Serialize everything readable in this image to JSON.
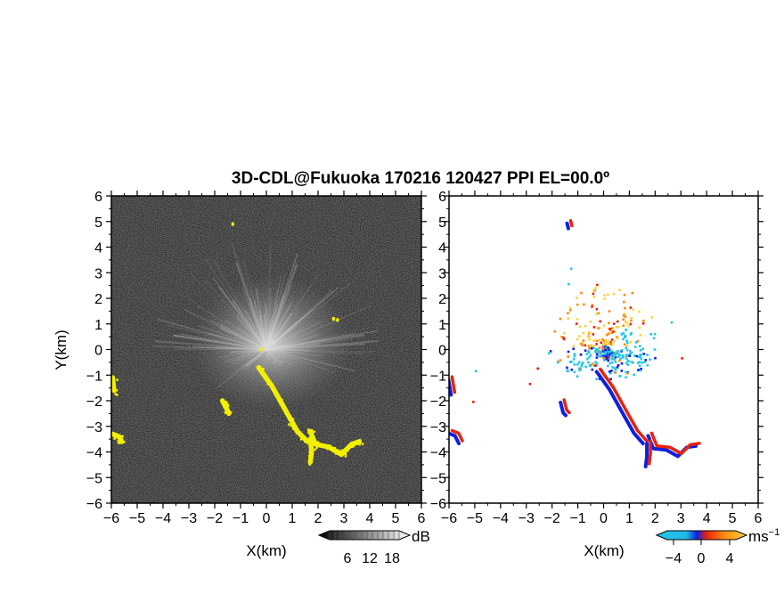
{
  "title": "3D-CDL@Fukuoka 170216 120427 PPI EL=00.0º",
  "colors": {
    "background": "#ffffff",
    "snr_panel_bg": "#2a2a2a",
    "snr_echo": "#f2f000",
    "vel_positive": "#e8220c",
    "vel_negative": "#1020e0",
    "vel_zero_cyan": "#20c8e8",
    "vel_orange": "#ff8a10",
    "vel_yellow": "#ffd23c"
  },
  "chart_data": [
    {
      "type": "heatmap",
      "name": "snr-ppi",
      "xlabel": "X(km)",
      "ylabel": "Y(km)",
      "xlim": [
        -6,
        6
      ],
      "ylim": [
        -6,
        6
      ],
      "xticks": [
        "−6",
        "−5",
        "−4",
        "−3",
        "−2",
        "−1",
        "0",
        "1",
        "2",
        "3",
        "4",
        "5",
        "6"
      ],
      "yticks": [
        "6",
        "5",
        "4",
        "3",
        "2",
        "1",
        "0",
        "−1",
        "−2",
        "−3",
        "−4",
        "−5",
        "−6"
      ],
      "colorbar": {
        "unit": "dB",
        "ticks": [
          "6",
          "12",
          "18"
        ],
        "range": [
          0,
          24
        ],
        "colors": [
          "#000000",
          "#ffffff"
        ]
      },
      "echo_features": [
        {
          "kind": "line",
          "points": [
            [
              -0.3,
              -0.7
            ],
            [
              0.2,
              -1.4
            ],
            [
              0.7,
              -2.3
            ],
            [
              1.2,
              -3.2
            ],
            [
              1.6,
              -3.6
            ]
          ]
        },
        {
          "kind": "line",
          "points": [
            [
              1.7,
              -3.2
            ],
            [
              1.9,
              -3.7
            ],
            [
              2.4,
              -3.8
            ],
            [
              2.9,
              -4.1
            ],
            [
              3.3,
              -3.7
            ],
            [
              3.6,
              -3.6
            ]
          ]
        },
        {
          "kind": "line",
          "points": [
            [
              1.7,
              -3.5
            ],
            [
              1.75,
              -4.0
            ],
            [
              1.7,
              -4.4
            ]
          ]
        },
        {
          "kind": "line",
          "points": [
            [
              -5.95,
              -1.1
            ],
            [
              -5.9,
              -1.6
            ]
          ]
        },
        {
          "kind": "line",
          "points": [
            [
              -5.95,
              -3.3
            ],
            [
              -5.7,
              -3.4
            ],
            [
              -5.6,
              -3.6
            ]
          ]
        },
        {
          "kind": "line",
          "points": [
            [
              -1.7,
              -2.0
            ],
            [
              -1.55,
              -2.3
            ],
            [
              -1.45,
              -2.5
            ]
          ]
        },
        {
          "kind": "blob",
          "points": [
            [
              -1.3,
              4.9
            ],
            [
              2.6,
              1.2
            ],
            [
              2.75,
              1.15
            ],
            [
              -0.2,
              0.0
            ]
          ]
        }
      ]
    },
    {
      "type": "heatmap",
      "name": "doppler-velocity-ppi",
      "xlabel": "X(km)",
      "xlim": [
        -6,
        6
      ],
      "ylim": [
        -6,
        6
      ],
      "xticks": [
        "−6",
        "−5",
        "−4",
        "−3",
        "−2",
        "−1",
        "0",
        "1",
        "2",
        "3",
        "4",
        "5",
        "6"
      ],
      "yticks": [
        "6",
        "5",
        "4",
        "3",
        "2",
        "1",
        "0",
        "−1",
        "−2",
        "−3",
        "−4",
        "−5",
        "−6"
      ],
      "colorbar": {
        "unit": "ms",
        "unit_exponent": "−1",
        "ticks": [
          "−4",
          "0",
          "4"
        ],
        "range": [
          -6,
          6
        ],
        "colors": [
          "#20c8e8",
          "#1020e0",
          "#e8220c",
          "#ff8a10",
          "#ffd23c"
        ]
      },
      "echo_features": [
        {
          "kind": "ridge",
          "points": [
            [
              -0.2,
              -0.8
            ],
            [
              0.3,
              -1.5
            ],
            [
              0.8,
              -2.4
            ],
            [
              1.25,
              -3.2
            ],
            [
              1.6,
              -3.6
            ]
          ]
        },
        {
          "kind": "ridge",
          "points": [
            [
              1.8,
              -3.3
            ],
            [
              2.0,
              -3.8
            ],
            [
              2.5,
              -3.85
            ],
            [
              2.95,
              -4.1
            ],
            [
              3.3,
              -3.75
            ],
            [
              3.65,
              -3.7
            ]
          ]
        },
        {
          "kind": "ridge",
          "points": [
            [
              1.75,
              -3.6
            ],
            [
              1.75,
              -4.1
            ],
            [
              1.7,
              -4.5
            ]
          ]
        },
        {
          "kind": "ridge",
          "points": [
            [
              -5.95,
              -1.1
            ],
            [
              -5.85,
              -1.7
            ]
          ]
        },
        {
          "kind": "ridge",
          "points": [
            [
              -5.95,
              -3.2
            ],
            [
              -5.7,
              -3.3
            ],
            [
              -5.55,
              -3.6
            ]
          ]
        },
        {
          "kind": "ridge",
          "points": [
            [
              -1.6,
              -2.0
            ],
            [
              -1.5,
              -2.4
            ],
            [
              -1.4,
              -2.5
            ]
          ]
        },
        {
          "kind": "ridge",
          "points": [
            [
              -1.35,
              5.0
            ],
            [
              -1.3,
              4.8
            ]
          ]
        }
      ]
    }
  ]
}
